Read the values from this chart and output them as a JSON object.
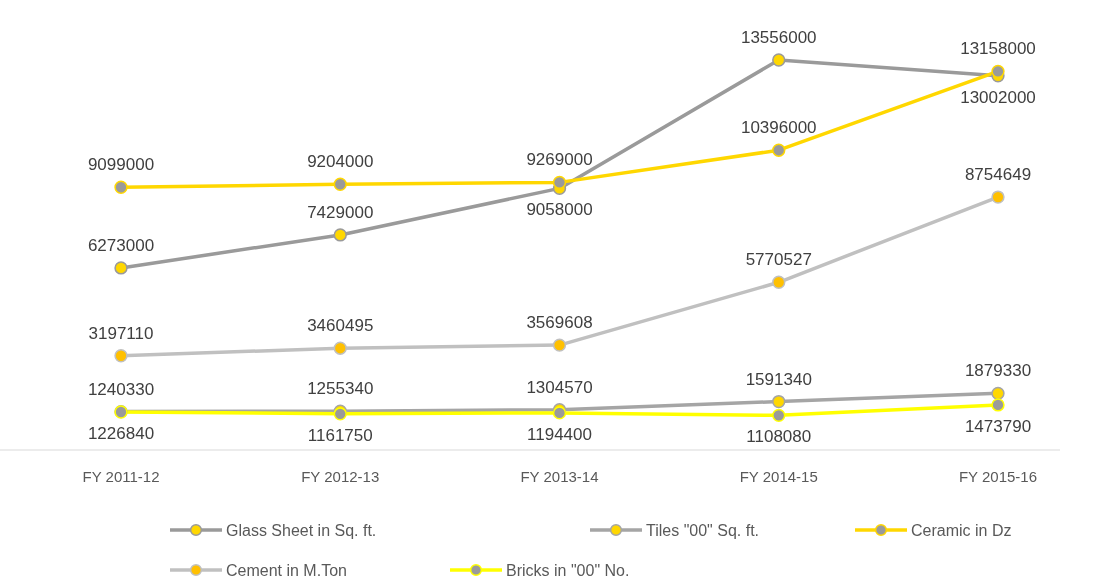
{
  "chart_data": {
    "type": "line",
    "categories": [
      "FY 2011-12",
      "FY 2012-13",
      "FY 2013-14",
      "FY 2014-15",
      "FY 2015-16"
    ],
    "series": [
      {
        "name": "Glass Sheet in Sq. ft.",
        "color": "#9a9a9a",
        "values": [
          6273000,
          7429000,
          9058000,
          13556000,
          13002000
        ]
      },
      {
        "name": "Tiles \"00\" Sq. ft.",
        "color": "#a5a5a5",
        "values": [
          1240330,
          1255340,
          1304570,
          1591340,
          1879330
        ]
      },
      {
        "name": "Ceramic in Dz",
        "color": "#ffd700",
        "values": [
          9099000,
          9204000,
          9269000,
          10396000,
          13158000
        ]
      },
      {
        "name": "Cement in M.Ton",
        "color": "#c0c0c0",
        "values": [
          3197110,
          3460495,
          3569608,
          5770527,
          8754649
        ]
      },
      {
        "name": "Bricks in \"00\" No.",
        "color": "#ffff00",
        "values": [
          1226840,
          1161750,
          1194400,
          1108080,
          1473790
        ]
      }
    ],
    "data_labels": true,
    "marker": "circle",
    "line_style": "solid",
    "legend": "bottom"
  }
}
